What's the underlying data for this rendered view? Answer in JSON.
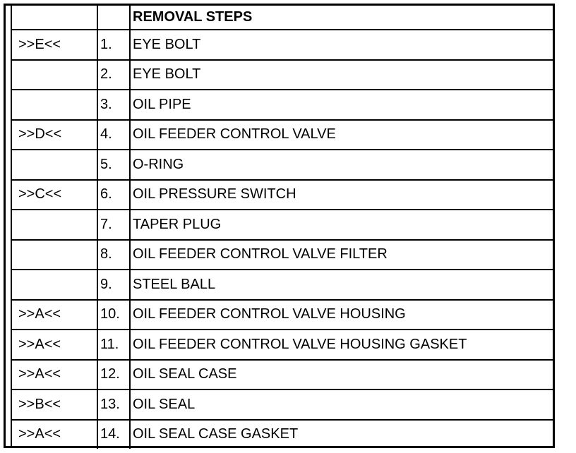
{
  "header": {
    "col1": "",
    "col2": "",
    "col3": "REMOVAL STEPS"
  },
  "rows": [
    {
      "ref": ">>E<<",
      "num": "1.",
      "step": "EYE BOLT"
    },
    {
      "ref": "",
      "num": "2.",
      "step": "EYE BOLT"
    },
    {
      "ref": "",
      "num": "3.",
      "step": "OIL PIPE"
    },
    {
      "ref": ">>D<<",
      "num": "4.",
      "step": "OIL FEEDER CONTROL VALVE"
    },
    {
      "ref": "",
      "num": "5.",
      "step": "O-RING"
    },
    {
      "ref": ">>C<<",
      "num": "6.",
      "step": "OIL PRESSURE SWITCH"
    },
    {
      "ref": "",
      "num": "7.",
      "step": "TAPER PLUG"
    },
    {
      "ref": "",
      "num": "8.",
      "step": "OIL FEEDER CONTROL VALVE FILTER"
    },
    {
      "ref": "",
      "num": "9.",
      "step": "STEEL BALL"
    },
    {
      "ref": ">>A<<",
      "num": "10.",
      "step": "OIL FEEDER CONTROL VALVE HOUSING"
    },
    {
      "ref": ">>A<<",
      "num": "11.",
      "step": "OIL FEEDER CONTROL VALVE HOUSING GASKET"
    },
    {
      "ref": ">>A<<",
      "num": "12.",
      "step": "OIL SEAL CASE"
    },
    {
      "ref": ">>B<<",
      "num": "13.",
      "step": "OIL SEAL"
    },
    {
      "ref": ">>A<<",
      "num": "14.",
      "step": "OIL SEAL CASE GASKET"
    }
  ]
}
